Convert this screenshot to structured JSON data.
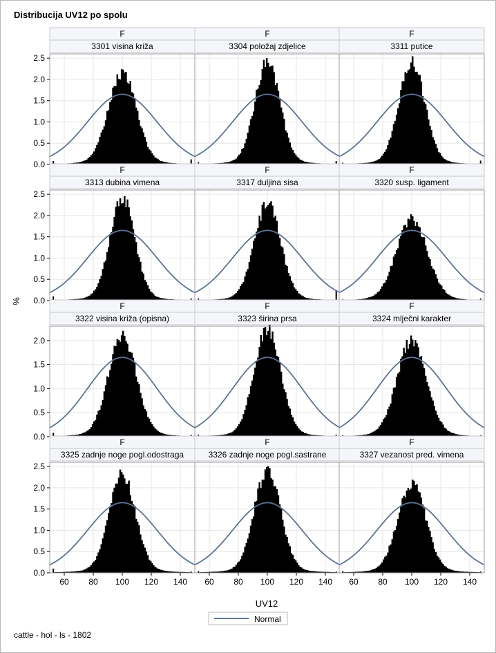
{
  "chart_data": {
    "type": "bar",
    "title": "Distribucija UV12 po spolu",
    "footnote": "cattle - hol - ls - 1802",
    "xlabel": "UV12",
    "ylabel": "%",
    "xlim": [
      50,
      150
    ],
    "xticks": [
      "60",
      "80",
      "100",
      "120",
      "140"
    ],
    "legend": {
      "label": "Normal",
      "placement": "bottom-center"
    },
    "row_header": "F",
    "rows": [
      {
        "ylim": [
          0,
          2.6
        ],
        "yticks": [
          "0.0",
          "0.5",
          "1.0",
          "1.5",
          "2.0",
          "2.5"
        ]
      },
      {
        "ylim": [
          0,
          2.6
        ],
        "yticks": [
          "0.0",
          "0.5",
          "1.0",
          "1.5",
          "2.0",
          "2.5"
        ]
      },
      {
        "ylim": [
          0,
          2.3
        ],
        "yticks": [
          "0.0",
          "0.5",
          "1.0",
          "1.5",
          "2.0"
        ]
      },
      {
        "ylim": [
          0,
          2.6
        ],
        "yticks": [
          "0.0",
          "0.5",
          "1.0",
          "1.5",
          "2.0",
          "2.5"
        ]
      }
    ],
    "normal": {
      "mean": 100,
      "sd": 24,
      "peak": 1.65
    },
    "panels": [
      {
        "header": "F",
        "label": "3301 visina križa",
        "peak": 2.1,
        "sd": 9.5,
        "edge_left": 0.08,
        "edge_right": 0.12
      },
      {
        "header": "F",
        "label": "3304 položaj zdjelice",
        "peak": 2.35,
        "sd": 8.5,
        "edge_left": 0.05,
        "edge_right": 0.08
      },
      {
        "header": "F",
        "label": "3311 putice",
        "peak": 2.35,
        "sd": 8.8,
        "edge_left": 0.04,
        "edge_right": 0.09
      },
      {
        "header": "F",
        "label": "3313 dubina vimena",
        "peak": 2.35,
        "sd": 8.5,
        "edge_left": 0.1,
        "edge_right": 0.05
      },
      {
        "header": "F",
        "label": "3317 duljina sisa",
        "peak": 2.2,
        "sd": 9.0,
        "edge_left": 0.05,
        "edge_right": 0.25
      },
      {
        "header": "F",
        "label": "3320 susp. ligament",
        "peak": 1.85,
        "sd": 10.5,
        "edge_left": 0.03,
        "edge_right": 0.05
      },
      {
        "header": "F",
        "label": "3322 visina križa (opisna)",
        "peak": 2.05,
        "sd": 9.5,
        "edge_left": 0.08,
        "edge_right": 0.04
      },
      {
        "header": "F",
        "label": "3323 širina prsa",
        "peak": 2.2,
        "sd": 9.0,
        "edge_left": 0.04,
        "edge_right": 0.04
      },
      {
        "header": "F",
        "label": "3324 mlječni karakter",
        "peak": 1.95,
        "sd": 10.0,
        "edge_left": 0.03,
        "edge_right": 0.03
      },
      {
        "header": "F",
        "label": "3325 zadnje noge pogl.odostraga",
        "peak": 2.25,
        "sd": 9.0,
        "edge_left": 0.1,
        "edge_right": 0.03
      },
      {
        "header": "F",
        "label": "3326 zadnje noge pogl.sastrane",
        "peak": 2.35,
        "sd": 9.0,
        "edge_left": 0.04,
        "edge_right": 0.03
      },
      {
        "header": "F",
        "label": "3327 vezanost pred. vimena",
        "peak": 2.05,
        "sd": 9.5,
        "edge_left": 0.04,
        "edge_right": 0.03
      }
    ]
  }
}
